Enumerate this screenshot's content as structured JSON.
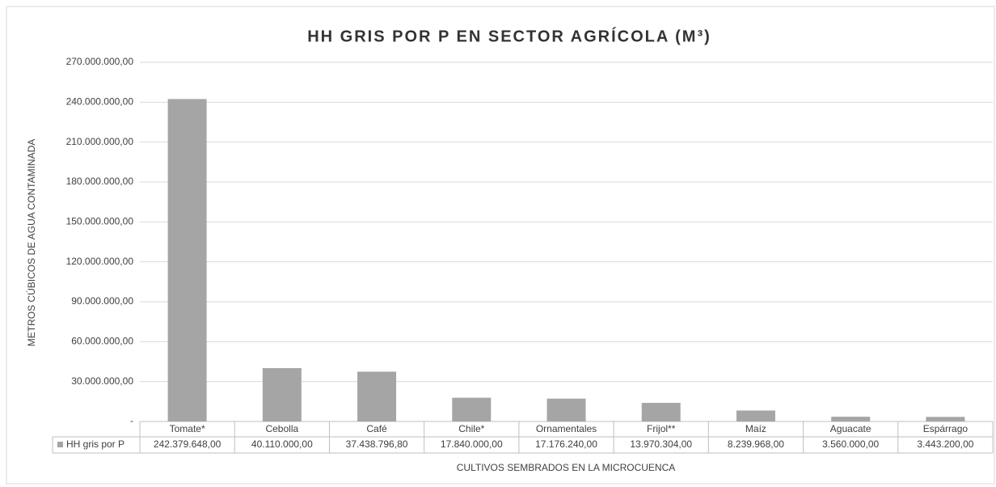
{
  "chart_data": {
    "type": "bar",
    "title": "HH GRIS POR P EN SECTOR AGRÍCOLA (M³)",
    "y_label": "METROS CÚBICOS DE AGUA CONTAMINADA",
    "x_label": "CULTIVOS SEMBRADOS EN LA MICROCUENCA",
    "categories": [
      "Tomate*",
      "Cebolla",
      "Café",
      "Chile*",
      "Ornamentales",
      "Frijol**",
      "Maíz",
      "Aguacate",
      "Espárrago"
    ],
    "series": [
      {
        "name": "HH gris por P",
        "color": "#a5a5a5",
        "values": [
          242379648.0,
          40110000.0,
          37438796.8,
          17840000.0,
          17176240.0,
          13970304.0,
          8239968.0,
          3560000.0,
          3443200.0
        ],
        "value_labels": [
          "242.379.648,00",
          "40.110.000,00",
          "37.438.796,80",
          "17.840.000,00",
          "17.176.240,00",
          "13.970.304,00",
          "8.239.968,00",
          "3.560.000,00",
          "3.443.200,00"
        ]
      }
    ],
    "ylim": [
      0,
      270000000
    ],
    "yticks": [
      {
        "value": 0,
        "label": "-"
      },
      {
        "value": 30000000,
        "label": "30.000.000,00"
      },
      {
        "value": 60000000,
        "label": "60.000.000,00"
      },
      {
        "value": 90000000,
        "label": "90.000.000,00"
      },
      {
        "value": 120000000,
        "label": "120.000.000,00"
      },
      {
        "value": 150000000,
        "label": "150.000.000,00"
      },
      {
        "value": 180000000,
        "label": "180.000.000,00"
      },
      {
        "value": 210000000,
        "label": "210.000.000,00"
      },
      {
        "value": 240000000,
        "label": "240.000.000,00"
      },
      {
        "value": 270000000,
        "label": "270.000.000,00"
      }
    ],
    "grid": true
  }
}
